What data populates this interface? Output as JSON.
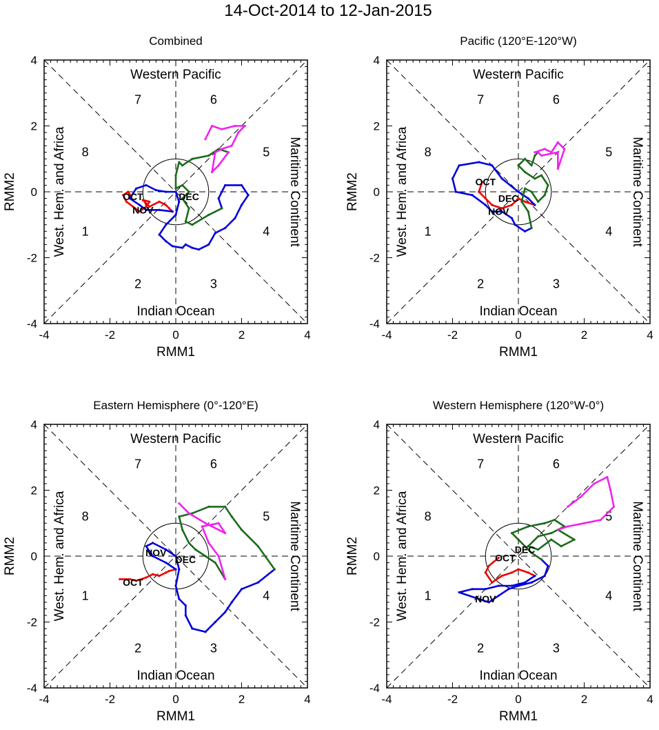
{
  "title": "14-Oct-2014 to 12-Jan-2015",
  "colors": {
    "Oct": "#ee0000",
    "Nov": "#0000dd",
    "Dec": "#1a6b1a",
    "Jan": "#ee22ee",
    "axis": "#000000",
    "dash": "#000000"
  },
  "common": {
    "xlabel": "RMM1",
    "ylabel": "RMM2",
    "xlim": [
      -4,
      4
    ],
    "ylim": [
      -4,
      4
    ],
    "xticks": [
      "-4",
      "-2",
      "0",
      "2",
      "4"
    ],
    "yticks": [
      "4",
      "2",
      "0",
      "-2",
      "-4"
    ],
    "region_labels": {
      "top": "Western Pacific",
      "bottom": "Indian Ocean",
      "left": "West. Hem. and Africa",
      "right": "Maritime Continent"
    },
    "phase_labels": [
      {
        "label": "1",
        "x": -2.75,
        "y": -1.2
      },
      {
        "label": "2",
        "x": -1.15,
        "y": -2.8
      },
      {
        "label": "3",
        "x": 1.15,
        "y": -2.8
      },
      {
        "label": "4",
        "x": 2.75,
        "y": -1.2
      },
      {
        "label": "5",
        "x": 2.75,
        "y": 1.2
      },
      {
        "label": "6",
        "x": 1.15,
        "y": 2.8
      },
      {
        "label": "7",
        "x": -1.15,
        "y": 2.8
      },
      {
        "label": "8",
        "x": -2.75,
        "y": 1.2
      }
    ]
  },
  "chart_data": [
    {
      "type": "line",
      "title": "Combined",
      "month_labels": [
        {
          "month": "Oct",
          "x": -1.3,
          "y": -0.15
        },
        {
          "month": "Nov",
          "x": -1.0,
          "y": -0.55
        },
        {
          "month": "Dec",
          "x": 0.4,
          "y": -0.15
        }
      ],
      "series": [
        {
          "name": "Oct",
          "points": [
            [
              -1.35,
              -0.15
            ],
            [
              -1.45,
              0.0
            ],
            [
              -1.6,
              -0.1
            ],
            [
              -1.5,
              -0.3
            ],
            [
              -1.3,
              -0.45
            ],
            [
              -1.1,
              -0.6
            ],
            [
              -0.9,
              -0.45
            ],
            [
              -0.8,
              -0.3
            ],
            [
              -1.0,
              -0.25
            ],
            [
              -0.8,
              -0.45
            ],
            [
              -0.5,
              -0.3
            ],
            [
              -0.3,
              -0.4
            ],
            [
              -0.2,
              -0.5
            ],
            [
              -0.1,
              -0.6
            ]
          ]
        },
        {
          "name": "Nov",
          "points": [
            [
              -0.1,
              -0.6
            ],
            [
              -0.5,
              -0.55
            ],
            [
              -0.9,
              -0.55
            ],
            [
              -1.1,
              -0.4
            ],
            [
              -1.4,
              -0.2
            ],
            [
              -1.2,
              0.1
            ],
            [
              -0.9,
              0.2
            ],
            [
              -0.6,
              0.05
            ],
            [
              -0.3,
              0.0
            ],
            [
              0.0,
              0.0
            ],
            [
              0.1,
              -0.3
            ],
            [
              0.0,
              -0.7
            ],
            [
              -0.3,
              -1.0
            ],
            [
              -0.5,
              -1.3
            ],
            [
              -0.3,
              -1.5
            ],
            [
              -0.1,
              -1.65
            ],
            [
              0.2,
              -1.7
            ],
            [
              0.3,
              -1.6
            ],
            [
              0.5,
              -1.7
            ],
            [
              0.7,
              -1.75
            ],
            [
              1.0,
              -1.6
            ],
            [
              1.2,
              -1.25
            ],
            [
              1.5,
              -1.1
            ],
            [
              1.8,
              -0.8
            ],
            [
              2.0,
              -0.4
            ],
            [
              2.2,
              -0.1
            ],
            [
              2.0,
              0.2
            ],
            [
              1.5,
              0.2
            ],
            [
              1.3,
              -0.2
            ],
            [
              1.4,
              -0.5
            ]
          ]
        },
        {
          "name": "Dec",
          "points": [
            [
              1.4,
              -0.5
            ],
            [
              1.0,
              -0.7
            ],
            [
              0.5,
              -1.0
            ],
            [
              0.3,
              -0.9
            ],
            [
              0.4,
              -0.5
            ],
            [
              0.2,
              -0.2
            ],
            [
              0.4,
              0.0
            ],
            [
              0.2,
              0.2
            ],
            [
              0.0,
              0.1
            ],
            [
              0.0,
              0.5
            ],
            [
              0.1,
              0.9
            ],
            [
              0.2,
              0.8
            ],
            [
              0.5,
              1.0
            ],
            [
              1.0,
              1.1
            ],
            [
              1.3,
              1.3
            ],
            [
              1.6,
              1.2
            ]
          ]
        },
        {
          "name": "Jan",
          "points": [
            [
              1.6,
              1.2
            ],
            [
              1.3,
              0.8
            ],
            [
              1.1,
              0.6
            ],
            [
              1.2,
              1.2
            ],
            [
              1.4,
              1.3
            ],
            [
              1.7,
              1.4
            ],
            [
              1.9,
              1.8
            ],
            [
              2.1,
              2.0
            ],
            [
              1.8,
              2.0
            ],
            [
              1.4,
              1.9
            ],
            [
              1.1,
              2.0
            ],
            [
              0.9,
              1.6
            ]
          ]
        }
      ]
    },
    {
      "type": "line",
      "title": "Pacific (120°E-120°W)",
      "month_labels": [
        {
          "month": "Oct",
          "x": -1.0,
          "y": 0.3
        },
        {
          "month": "Nov",
          "x": -0.6,
          "y": -0.6
        },
        {
          "month": "Dec",
          "x": -0.3,
          "y": -0.2
        }
      ],
      "series": [
        {
          "name": "Oct",
          "points": [
            [
              -1.1,
              0.3
            ],
            [
              -1.2,
              0.0
            ],
            [
              -1.0,
              -0.2
            ],
            [
              -0.8,
              -0.4
            ],
            [
              -0.5,
              -0.5
            ],
            [
              -0.2,
              -0.4
            ],
            [
              0.0,
              -0.2
            ],
            [
              0.2,
              -0.3
            ],
            [
              0.5,
              -0.4
            ]
          ]
        },
        {
          "name": "Nov",
          "points": [
            [
              0.5,
              -0.4
            ],
            [
              0.3,
              -0.2
            ],
            [
              0.0,
              0.0
            ],
            [
              -0.5,
              0.4
            ],
            [
              -0.8,
              0.8
            ],
            [
              -1.2,
              0.9
            ],
            [
              -1.8,
              0.8
            ],
            [
              -2.0,
              0.4
            ],
            [
              -1.9,
              0.0
            ],
            [
              -1.4,
              -0.1
            ],
            [
              -1.0,
              -0.4
            ],
            [
              -0.8,
              -0.6
            ],
            [
              -0.5,
              -0.6
            ],
            [
              -0.2,
              -0.8
            ],
            [
              -0.1,
              -1.0
            ],
            [
              0.2,
              -1.2
            ],
            [
              0.4,
              -1.1
            ]
          ]
        },
        {
          "name": "Dec",
          "points": [
            [
              0.4,
              -1.1
            ],
            [
              0.3,
              -0.6
            ],
            [
              0.1,
              -0.3
            ],
            [
              0.2,
              0.1
            ],
            [
              0.4,
              0.0
            ],
            [
              0.6,
              -0.3
            ],
            [
              0.8,
              -0.1
            ],
            [
              0.9,
              0.2
            ],
            [
              0.7,
              0.5
            ],
            [
              0.5,
              0.4
            ],
            [
              0.2,
              0.6
            ],
            [
              0.0,
              0.8
            ],
            [
              0.2,
              1.0
            ],
            [
              0.4,
              0.8
            ],
            [
              0.5,
              1.1
            ],
            [
              0.6,
              1.2
            ]
          ]
        },
        {
          "name": "Jan",
          "points": [
            [
              0.6,
              1.2
            ],
            [
              0.7,
              1.1
            ],
            [
              1.2,
              1.2
            ],
            [
              1.2,
              0.7
            ],
            [
              1.4,
              1.3
            ],
            [
              1.2,
              1.5
            ],
            [
              1.0,
              1.2
            ],
            [
              0.8,
              1.3
            ],
            [
              0.5,
              1.2
            ]
          ]
        }
      ]
    },
    {
      "type": "line",
      "title": "Eastern Hemisphere (0°-120°E)",
      "month_labels": [
        {
          "month": "Oct",
          "x": -1.3,
          "y": -0.8
        },
        {
          "month": "Nov",
          "x": -0.6,
          "y": 0.1
        },
        {
          "month": "Dec",
          "x": 0.3,
          "y": -0.1
        }
      ],
      "series": [
        {
          "name": "Oct",
          "points": [
            [
              -1.7,
              -0.7
            ],
            [
              -1.4,
              -0.7
            ],
            [
              -1.2,
              -0.75
            ],
            [
              -0.9,
              -0.65
            ],
            [
              -0.7,
              -0.55
            ],
            [
              -0.5,
              -0.6
            ],
            [
              -0.3,
              -0.5
            ],
            [
              -0.2,
              -0.45
            ],
            [
              0.0,
              -0.4
            ]
          ]
        },
        {
          "name": "Nov",
          "points": [
            [
              0.0,
              -0.4
            ],
            [
              -0.3,
              -0.2
            ],
            [
              -0.7,
              0.0
            ],
            [
              -0.9,
              0.3
            ],
            [
              -0.7,
              0.4
            ],
            [
              -0.3,
              0.2
            ],
            [
              0.0,
              0.0
            ],
            [
              0.1,
              -0.4
            ],
            [
              0.0,
              -0.9
            ],
            [
              0.1,
              -1.3
            ],
            [
              0.3,
              -1.5
            ],
            [
              0.3,
              -1.8
            ],
            [
              0.5,
              -2.2
            ],
            [
              0.9,
              -2.3
            ],
            [
              1.2,
              -2.0
            ],
            [
              1.5,
              -1.7
            ],
            [
              1.7,
              -1.4
            ],
            [
              2.0,
              -1.0
            ],
            [
              2.5,
              -0.8
            ],
            [
              3.0,
              -0.4
            ]
          ]
        },
        {
          "name": "Dec",
          "points": [
            [
              3.0,
              -0.4
            ],
            [
              2.5,
              0.3
            ],
            [
              2.0,
              0.8
            ],
            [
              1.7,
              1.2
            ],
            [
              1.5,
              1.5
            ],
            [
              1.0,
              1.5
            ],
            [
              0.5,
              1.3
            ],
            [
              0.1,
              1.2
            ],
            [
              0.2,
              0.8
            ],
            [
              0.4,
              0.4
            ],
            [
              0.6,
              0.2
            ],
            [
              0.9,
              0.0
            ],
            [
              1.2,
              -0.2
            ],
            [
              1.5,
              -0.7
            ]
          ]
        },
        {
          "name": "Jan",
          "points": [
            [
              1.5,
              -0.7
            ],
            [
              1.3,
              0.0
            ],
            [
              1.0,
              0.4
            ],
            [
              0.8,
              0.9
            ],
            [
              1.3,
              1.0
            ],
            [
              1.5,
              0.7
            ],
            [
              0.9,
              1.0
            ],
            [
              0.4,
              1.3
            ],
            [
              0.1,
              1.6
            ]
          ]
        }
      ]
    },
    {
      "type": "line",
      "title": "Western Hemisphere (120°W-0°)",
      "month_labels": [
        {
          "month": "Oct",
          "x": -0.4,
          "y": -0.05
        },
        {
          "month": "Nov",
          "x": -1.0,
          "y": -1.3
        },
        {
          "month": "Dec",
          "x": 0.2,
          "y": 0.2
        }
      ],
      "series": [
        {
          "name": "Oct",
          "points": [
            [
              -0.6,
              -0.05
            ],
            [
              -0.9,
              -0.3
            ],
            [
              -1.0,
              -0.5
            ],
            [
              -0.8,
              -0.8
            ],
            [
              -0.5,
              -0.6
            ],
            [
              -0.2,
              -0.5
            ],
            [
              0.0,
              -0.4
            ],
            [
              0.3,
              -0.5
            ],
            [
              0.5,
              -0.6
            ]
          ]
        },
        {
          "name": "Nov",
          "points": [
            [
              0.5,
              -0.6
            ],
            [
              0.2,
              -0.8
            ],
            [
              -0.2,
              -0.9
            ],
            [
              -0.6,
              -0.9
            ],
            [
              -1.0,
              -1.0
            ],
            [
              -1.4,
              -1.0
            ],
            [
              -1.8,
              -1.1
            ],
            [
              -1.2,
              -1.3
            ],
            [
              -0.9,
              -1.4
            ],
            [
              -0.6,
              -1.2
            ],
            [
              -0.3,
              -1.0
            ],
            [
              0.0,
              -0.9
            ],
            [
              0.4,
              -0.8
            ],
            [
              0.8,
              -0.6
            ],
            [
              0.9,
              -0.3
            ],
            [
              0.7,
              -0.1
            ]
          ]
        },
        {
          "name": "Dec",
          "points": [
            [
              0.7,
              -0.1
            ],
            [
              0.4,
              0.1
            ],
            [
              0.2,
              0.3
            ],
            [
              0.0,
              0.5
            ],
            [
              -0.2,
              0.7
            ],
            [
              0.3,
              0.9
            ],
            [
              0.8,
              1.0
            ],
            [
              1.1,
              1.1
            ],
            [
              1.4,
              0.9
            ],
            [
              1.0,
              0.7
            ],
            [
              0.6,
              0.6
            ],
            [
              0.3,
              0.3
            ],
            [
              0.6,
              0.2
            ],
            [
              1.0,
              0.5
            ],
            [
              1.3,
              0.3
            ],
            [
              1.7,
              0.5
            ],
            [
              1.2,
              0.8
            ]
          ]
        },
        {
          "name": "Jan",
          "points": [
            [
              1.2,
              0.8
            ],
            [
              1.5,
              0.9
            ],
            [
              2.0,
              1.0
            ],
            [
              2.5,
              1.1
            ],
            [
              2.9,
              1.5
            ],
            [
              2.8,
              2.0
            ],
            [
              2.7,
              2.4
            ],
            [
              2.3,
              2.2
            ],
            [
              1.9,
              1.8
            ],
            [
              1.5,
              1.5
            ]
          ]
        }
      ]
    }
  ]
}
